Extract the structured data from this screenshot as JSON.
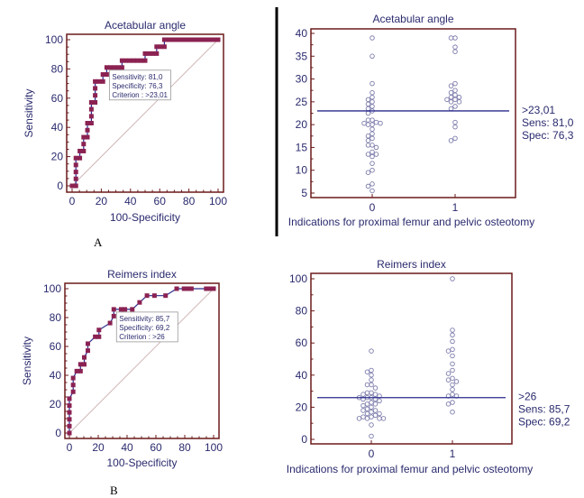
{
  "panel_labels": [
    "A",
    "B"
  ],
  "colors": {
    "frame": "#6b1a1a",
    "text": "#2a2a6e",
    "roc_marker": "#8b2252",
    "roc_line": "#2a2a8e",
    "diagonal": "#d0b8b8",
    "scatter_point": "#7a7aaa",
    "cutoff_line": "#2a2a8e",
    "divider": "#000000"
  },
  "chart_data": [
    {
      "id": "roc-acetabular",
      "type": "line",
      "title": "Acetabular angle",
      "xlabel": "100-Specificity",
      "ylabel": "Sensitivity",
      "xlim": [
        0,
        100
      ],
      "ylim": [
        0,
        100
      ],
      "xticks": [
        0,
        20,
        40,
        60,
        80,
        100
      ],
      "yticks": [
        0,
        20,
        40,
        60,
        80,
        100
      ],
      "diagonal": true,
      "points": [
        [
          0,
          0
        ],
        [
          2.6,
          0
        ],
        [
          2.6,
          4.8
        ],
        [
          2.6,
          9.5
        ],
        [
          2.6,
          14.3
        ],
        [
          2.6,
          19
        ],
        [
          5.3,
          19
        ],
        [
          5.3,
          23.8
        ],
        [
          7.9,
          23.8
        ],
        [
          7.9,
          28.6
        ],
        [
          7.9,
          33.3
        ],
        [
          10.5,
          33.3
        ],
        [
          10.5,
          38.1
        ],
        [
          10.5,
          42.9
        ],
        [
          13.2,
          42.9
        ],
        [
          13.2,
          47.6
        ],
        [
          13.2,
          52.4
        ],
        [
          13.2,
          57.1
        ],
        [
          15.8,
          57.1
        ],
        [
          15.8,
          61.9
        ],
        [
          15.8,
          66.7
        ],
        [
          15.8,
          71.4
        ],
        [
          18.4,
          71.4
        ],
        [
          21.1,
          71.4
        ],
        [
          21.1,
          76.2
        ],
        [
          23.7,
          76.2
        ],
        [
          23.7,
          81
        ],
        [
          26.3,
          81
        ],
        [
          28.9,
          81
        ],
        [
          31.6,
          81
        ],
        [
          34.2,
          81
        ],
        [
          34.2,
          85.7
        ],
        [
          36.8,
          85.7
        ],
        [
          39.5,
          85.7
        ],
        [
          42.1,
          85.7
        ],
        [
          44.7,
          85.7
        ],
        [
          47.4,
          85.7
        ],
        [
          50,
          85.7
        ],
        [
          50,
          90.5
        ],
        [
          52.6,
          90.5
        ],
        [
          55.3,
          90.5
        ],
        [
          57.9,
          90.5
        ],
        [
          57.9,
          95.2
        ],
        [
          60.5,
          95.2
        ],
        [
          63.2,
          95.2
        ],
        [
          63.2,
          100
        ],
        [
          65.8,
          100
        ],
        [
          68.4,
          100
        ],
        [
          71.1,
          100
        ],
        [
          73.7,
          100
        ],
        [
          76.3,
          100
        ],
        [
          78.9,
          100
        ],
        [
          81.6,
          100
        ],
        [
          84.2,
          100
        ],
        [
          86.8,
          100
        ],
        [
          89.5,
          100
        ],
        [
          92.1,
          100
        ],
        [
          94.7,
          100
        ],
        [
          97.4,
          100
        ],
        [
          100,
          100
        ]
      ],
      "annotation": {
        "point": [
          23.7,
          81
        ],
        "lines": [
          "Sensitivity: 81,0",
          "Specificity: 76,3",
          "Criterion : >23,01"
        ]
      }
    },
    {
      "id": "dot-acetabular",
      "type": "scatter",
      "title": "Acetabular angle",
      "xlabel": "Indications for proximal femur and pelvic osteotomy",
      "ylabel": "",
      "categories": [
        "0",
        "1"
      ],
      "ylim": [
        4,
        41
      ],
      "yticks": [
        5,
        10,
        15,
        20,
        25,
        30,
        35,
        40
      ],
      "cutoff": 23.01,
      "cutoff_labels": [
        ">23,01",
        "Sens: 81,0",
        "Spec: 76,3"
      ],
      "series": [
        {
          "name": "0",
          "values": [
            39,
            35,
            29,
            27,
            26,
            25.5,
            25,
            24.5,
            24,
            23.5,
            23,
            22.5,
            21,
            21,
            20.5,
            20.3,
            20.3,
            20,
            20,
            19,
            18,
            17.5,
            17,
            16.5,
            15.5,
            15.5,
            15,
            14,
            13.5,
            13.5,
            13,
            11.5,
            10,
            9.5,
            7,
            6.5,
            5.5
          ]
        },
        {
          "name": "1",
          "values": [
            39,
            39,
            37,
            36,
            29,
            28.5,
            27.5,
            27,
            26.5,
            26,
            26,
            25.5,
            25.5,
            25,
            25,
            24,
            23.5,
            20.5,
            19.5,
            17,
            16.5
          ]
        }
      ]
    },
    {
      "id": "roc-reimers",
      "type": "line",
      "title": "Reimers index",
      "xlabel": "100-Specificity",
      "ylabel": "Sensitivity",
      "xlim": [
        0,
        100
      ],
      "ylim": [
        0,
        100
      ],
      "xticks": [
        0,
        20,
        40,
        60,
        80,
        100
      ],
      "yticks": [
        0,
        20,
        40,
        60,
        80,
        100
      ],
      "diagonal": true,
      "points": [
        [
          0,
          0
        ],
        [
          0,
          4.8
        ],
        [
          0,
          9.5
        ],
        [
          0,
          14.3
        ],
        [
          0,
          19
        ],
        [
          0,
          23.8
        ],
        [
          2.6,
          28.6
        ],
        [
          2.6,
          33.3
        ],
        [
          2.6,
          38.1
        ],
        [
          5.1,
          42.9
        ],
        [
          7.7,
          42.9
        ],
        [
          7.7,
          47.6
        ],
        [
          10.3,
          47.6
        ],
        [
          10.3,
          52.4
        ],
        [
          12.8,
          57.1
        ],
        [
          12.8,
          61.9
        ],
        [
          17.9,
          66.7
        ],
        [
          20.5,
          66.7
        ],
        [
          20.5,
          71.4
        ],
        [
          28.2,
          76.2
        ],
        [
          30.8,
          81
        ],
        [
          30.8,
          85.7
        ],
        [
          35.9,
          85.7
        ],
        [
          38.5,
          85.7
        ],
        [
          43.6,
          85.7
        ],
        [
          48.7,
          90.5
        ],
        [
          53.8,
          95.2
        ],
        [
          59,
          95.2
        ],
        [
          66.7,
          95.2
        ],
        [
          74.4,
          100
        ],
        [
          79.5,
          100
        ],
        [
          82.1,
          100
        ],
        [
          84.6,
          100
        ],
        [
          94.9,
          100
        ],
        [
          97.4,
          100
        ],
        [
          100,
          100
        ]
      ],
      "annotation": {
        "point": [
          30.8,
          85.7
        ],
        "lines": [
          "Sensitivity: 85,7",
          "Specificity: 69,2",
          "Criterion : >26"
        ]
      }
    },
    {
      "id": "dot-reimers",
      "type": "scatter",
      "title": "Reimers index",
      "xlabel": "Indications for proximal femur and pelvic osteotomy",
      "ylabel": "",
      "categories": [
        "0",
        "1"
      ],
      "ylim": [
        -3,
        103
      ],
      "yticks": [
        0,
        20,
        40,
        60,
        80,
        100
      ],
      "cutoff": 26,
      "cutoff_labels": [
        ">26",
        "Sens: 85,7",
        "Spec: 69,2"
      ],
      "series": [
        {
          "name": "0",
          "values": [
            55,
            43,
            42,
            40,
            37,
            34,
            34,
            32,
            29,
            29,
            28,
            28,
            27,
            26,
            26,
            26,
            25,
            25,
            24,
            23,
            22,
            22,
            21,
            20,
            19,
            18,
            18,
            17,
            16,
            16,
            15,
            14,
            14,
            13,
            13,
            13,
            13,
            9,
            2
          ]
        },
        {
          "name": "1",
          "values": [
            100,
            68,
            65,
            61,
            56,
            55,
            52,
            47,
            43,
            41,
            38,
            37,
            36,
            34,
            31,
            28,
            27,
            27,
            23,
            22,
            17
          ]
        }
      ]
    }
  ]
}
